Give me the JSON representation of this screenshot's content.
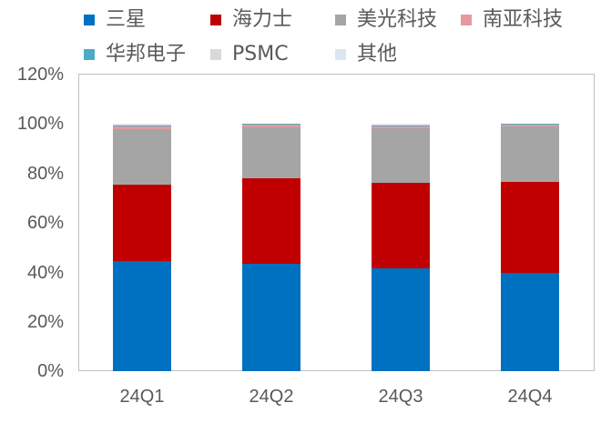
{
  "chart_data": {
    "type": "bar",
    "stacked": true,
    "title": "",
    "xlabel": "",
    "ylabel": "",
    "ylim": [
      0,
      120
    ],
    "y_ticks": [
      "0%",
      "20%",
      "40%",
      "60%",
      "80%",
      "100%",
      "120%"
    ],
    "grid": false,
    "legend_position": "top",
    "categories": [
      "24Q1",
      "24Q2",
      "24Q3",
      "24Q4"
    ],
    "series": [
      {
        "name": "三星",
        "color": "#0070c0",
        "values": [
          44.3,
          43.4,
          41.6,
          39.7
        ]
      },
      {
        "name": "海力士",
        "color": "#c00000",
        "values": [
          31.1,
          34.3,
          34.2,
          36.7
        ]
      },
      {
        "name": "美光科技",
        "color": "#a5a5a5",
        "values": [
          22.2,
          20.5,
          22.2,
          22.5
        ]
      },
      {
        "name": "南亚科技",
        "color": "#e6999c",
        "values": [
          1.2,
          1.2,
          0.9,
          0.7
        ]
      },
      {
        "name": "华邦电子",
        "color": "#4bacc6",
        "values": [
          0.3,
          0.3,
          0.3,
          0.2
        ]
      },
      {
        "name": "PSMC",
        "color": "#d9d9d9",
        "values": [
          0.2,
          0.2,
          0.2,
          0.2
        ]
      },
      {
        "name": "其他",
        "color": "#dce6f2",
        "values": [
          0.7,
          0.1,
          0.6,
          0.0
        ]
      }
    ]
  },
  "legend": {
    "row1": [
      "三星",
      "海力士",
      "美光科技",
      "南亚科技"
    ],
    "row2": [
      "华邦电子",
      "PSMC",
      "其他"
    ]
  }
}
